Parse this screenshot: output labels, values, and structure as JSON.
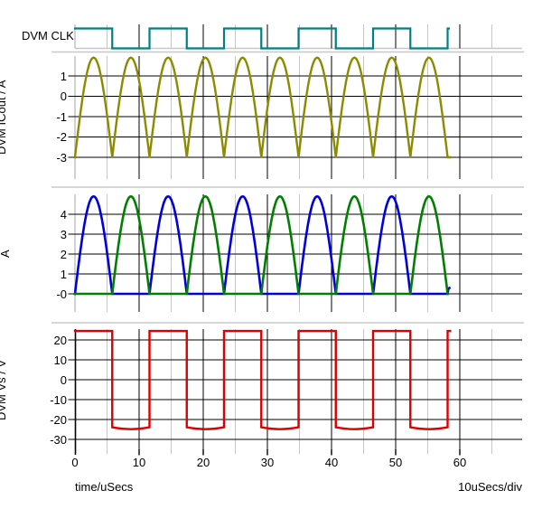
{
  "window": {
    "kind": "waveform-viewer"
  },
  "colors": {
    "background": "#FFFFFF",
    "grid_major": "#000000",
    "grid_minor": "#C6C6C6",
    "separator": "#C8C8C8",
    "text": "#000000",
    "clk_trace": "#008080",
    "icout_trace": "#8B8B00",
    "a_blue_trace": "#0000DD",
    "a_green_trace": "#007F00",
    "vs_trace": "#DD0000"
  },
  "panels": [
    {
      "label": "DVM CLK"
    },
    {
      "ylabel": "DVM ICout / A",
      "yticks": [
        {
          "v": 1,
          "label": "1"
        },
        {
          "v": 0,
          "label": "0"
        },
        {
          "v": -1,
          "label": "-1"
        },
        {
          "v": -2,
          "label": "-2"
        },
        {
          "v": -3,
          "label": "-3"
        }
      ]
    },
    {
      "ylabel": "A",
      "yticks": [
        {
          "v": 4,
          "label": "4"
        },
        {
          "v": 3,
          "label": "3"
        },
        {
          "v": 2,
          "label": "2"
        },
        {
          "v": 1,
          "label": "1"
        },
        {
          "v": 0,
          "label": "-0"
        }
      ]
    },
    {
      "ylabel": "DVM Vs / V",
      "yticks": [
        {
          "v": 20,
          "label": "20"
        },
        {
          "v": 10,
          "label": "10"
        },
        {
          "v": 0,
          "label": "0"
        },
        {
          "v": -10,
          "label": "-10"
        },
        {
          "v": -20,
          "label": "-20"
        },
        {
          "v": -30,
          "label": "-30"
        }
      ]
    }
  ],
  "xaxis": {
    "label": "time/uSecs",
    "per_div": "10uSecs/div",
    "major_ticks": [
      {
        "t": 0,
        "label": "0"
      },
      {
        "t": 10,
        "label": "10"
      },
      {
        "t": 20,
        "label": "20"
      },
      {
        "t": 30,
        "label": "30"
      },
      {
        "t": 40,
        "label": "40"
      },
      {
        "t": 50,
        "label": "50"
      },
      {
        "t": 60,
        "label": "60"
      }
    ],
    "minor_ticks_us": [
      0,
      5,
      15,
      25,
      35,
      45,
      55,
      65
    ]
  },
  "chart_data": [
    {
      "type": "line",
      "title": "DVM CLK",
      "waveform": "square-clock-logic",
      "color": "#008080",
      "x_units": "uSecs",
      "period_us": 11.62,
      "duty_cycle": 0.5,
      "starts": "high",
      "t_start": 0,
      "t_end": 58.3,
      "transitions_us": [
        5.81,
        11.62,
        17.43,
        23.24,
        29.05,
        34.86,
        40.67,
        46.48,
        52.29,
        58.1
      ]
    },
    {
      "type": "line",
      "title": "DVM ICout / A",
      "waveform": "rectified-sine-humps",
      "color": "#8B8B00",
      "hump_period_us": 5.81,
      "hump_count": 10,
      "min_value": -3.0,
      "peak_value": 1.9,
      "t_end": 58.5,
      "ylim": [
        -3.6,
        2.35
      ]
    },
    {
      "type": "line",
      "title": "A",
      "waveform": "alternating-half-sine-pulses",
      "base_value": 0,
      "peak_value": 4.9,
      "hump_period_us": 5.81,
      "series": [
        {
          "name": "blue-phase",
          "color": "#0000DD",
          "pulse_intervals_us": [
            [
              0,
              5.81
            ],
            [
              11.62,
              17.43
            ],
            [
              23.24,
              29.05
            ],
            [
              34.86,
              40.67
            ],
            [
              46.48,
              52.29
            ]
          ],
          "end_tick_us": 58.1
        },
        {
          "name": "green-phase",
          "color": "#007F00",
          "pulse_intervals_us": [
            [
              5.81,
              11.62
            ],
            [
              17.43,
              23.24
            ],
            [
              29.05,
              34.86
            ],
            [
              40.67,
              46.48
            ],
            [
              52.29,
              58.1
            ]
          ]
        }
      ]
    },
    {
      "type": "line",
      "title": "DVM Vs / V",
      "waveform": "square-bipolar",
      "color": "#DD0000",
      "period_us": 11.62,
      "high_value": 24.5,
      "low_value": -25.3,
      "starts": "high",
      "t_end": 58.5,
      "falls_us": [
        5.81,
        17.43,
        29.05,
        40.67,
        52.29
      ],
      "rises_us": [
        11.62,
        23.24,
        34.86,
        46.48,
        58.1
      ]
    }
  ]
}
